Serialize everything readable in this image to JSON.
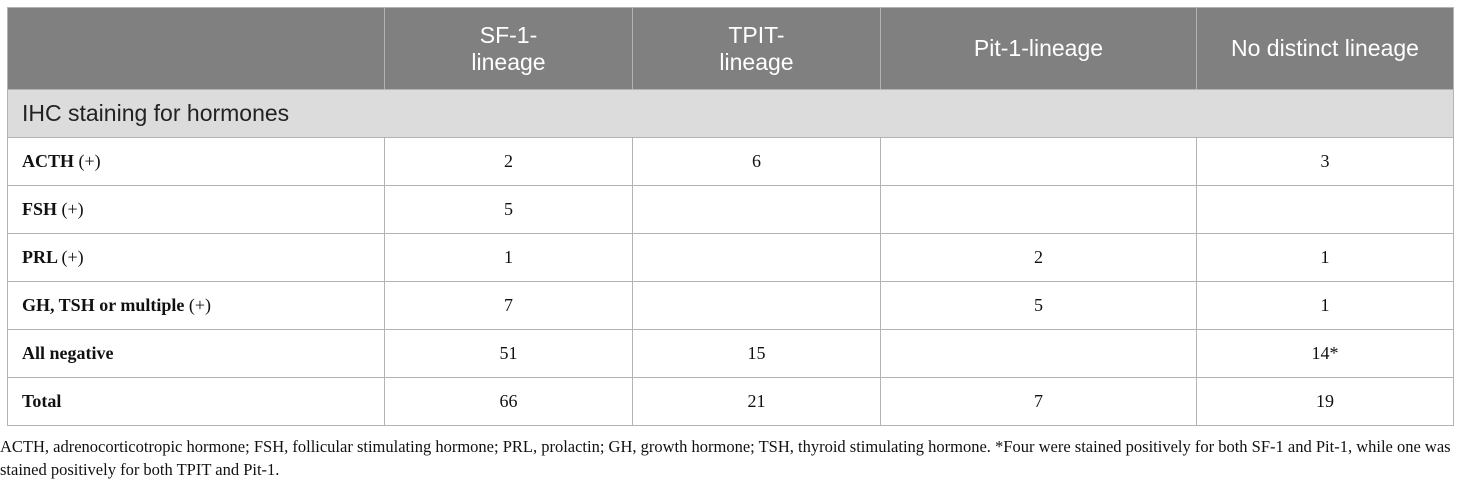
{
  "table": {
    "headers": [
      "",
      "SF-1-\nlineage",
      "TPIT-\nlineage",
      "Pit-1-lineage",
      "No distinct lineage"
    ],
    "section_title": "IHC staining for hormones",
    "rows": [
      {
        "label": "ACTH",
        "suffix": "(+)",
        "values": [
          "2",
          "6",
          "",
          "3"
        ]
      },
      {
        "label": "FSH",
        "suffix": "(+)",
        "values": [
          "5",
          "",
          "",
          ""
        ]
      },
      {
        "label": "PRL",
        "suffix": "(+)",
        "values": [
          "1",
          "",
          "2",
          "1"
        ]
      },
      {
        "label": "GH, TSH or multiple",
        "suffix": "(+)",
        "values": [
          "7",
          "",
          "5",
          "1"
        ]
      },
      {
        "label": "All negative",
        "suffix": "",
        "values": [
          "51",
          "15",
          "",
          "14*"
        ]
      },
      {
        "label": "Total",
        "suffix": "",
        "values": [
          "66",
          "21",
          "7",
          "19"
        ]
      }
    ]
  },
  "footnote": "ACTH, adrenocorticotropic hormone; FSH, follicular stimulating hormone; PRL, prolactin; GH, growth hormone; TSH, thyroid stimulating hormone. *Four were stained positively for both SF-1 and Pit-1, while one was stained positively for both TPIT and Pit-1."
}
